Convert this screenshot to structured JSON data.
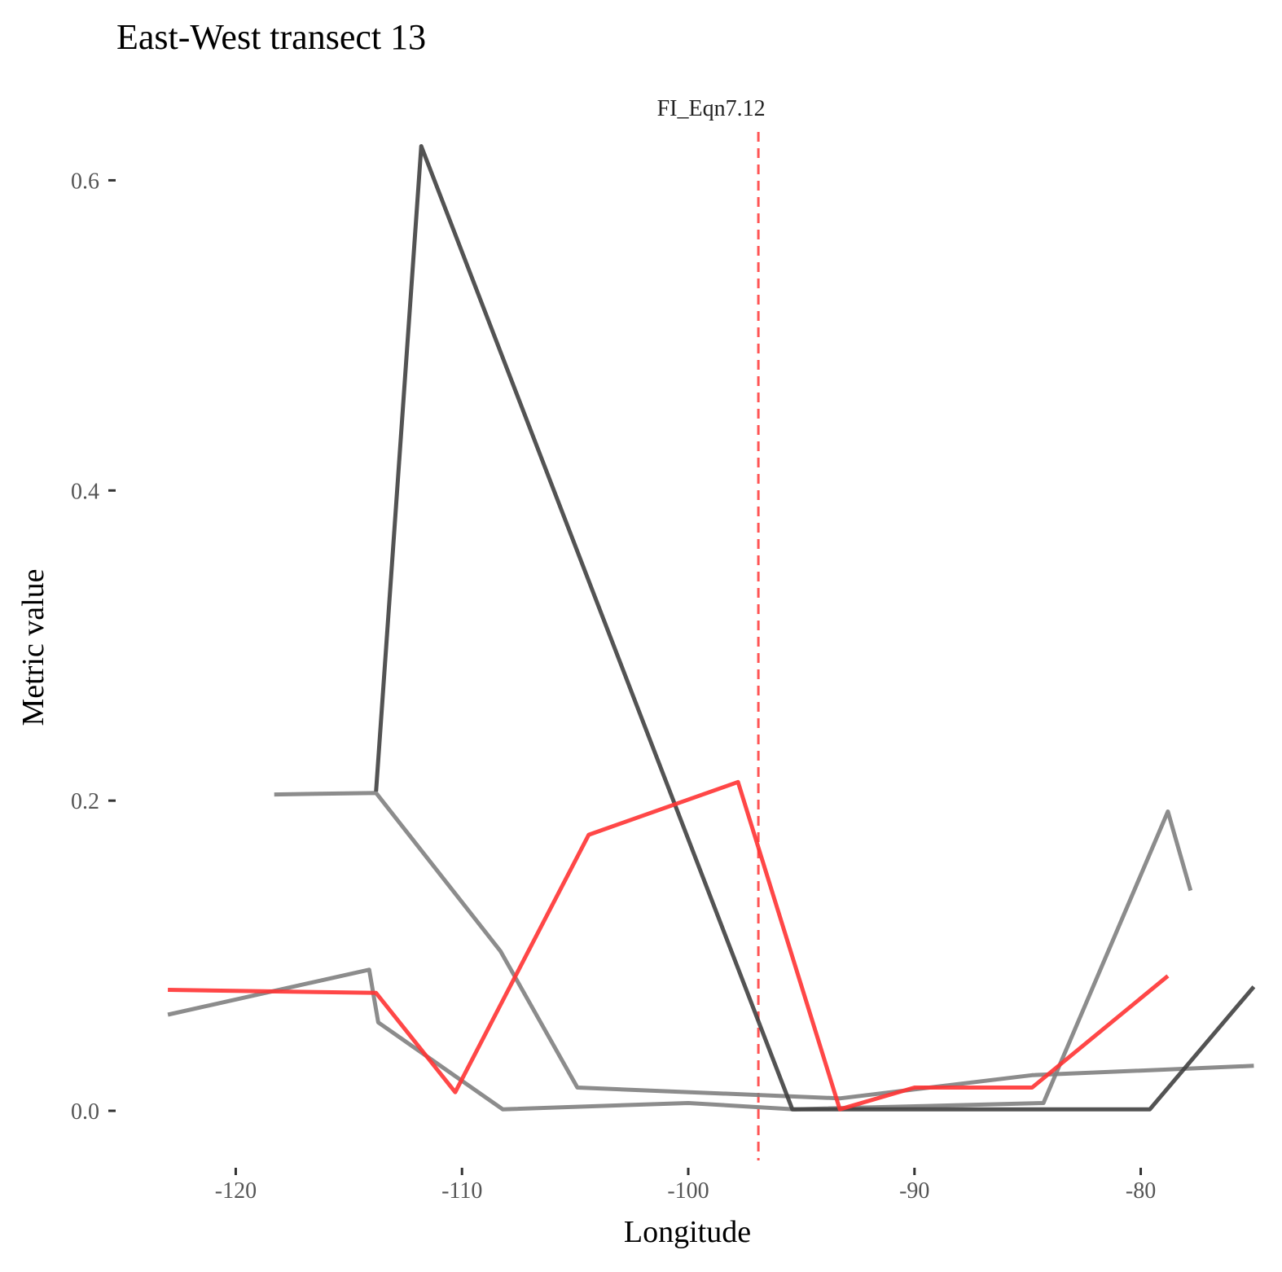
{
  "chart_data": {
    "type": "line",
    "title": "East-West transect 13",
    "xlabel": "Longitude",
    "ylabel": "Metric value",
    "xlim": [
      -125.2,
      -74.8
    ],
    "ylim": [
      -0.032,
      0.648
    ],
    "x_ticks": [
      -120,
      -110,
      -100,
      -90,
      -80
    ],
    "x_tick_labels": [
      "-120",
      "-110",
      "-100",
      "-90",
      "-80"
    ],
    "y_ticks": [
      0.0,
      0.2,
      0.4,
      0.6
    ],
    "y_tick_labels": [
      "0.0",
      "0.2",
      "0.4",
      "0.6"
    ],
    "grid": false,
    "legend": "none",
    "reference_line": {
      "x": -96.9,
      "label": "FI_Eqn7.12",
      "color": "#ff5555",
      "style": "dashed"
    },
    "series": [
      {
        "color": "#808080",
        "points": [
          [
            -118.3,
            0.204
          ],
          [
            -113.8,
            0.205
          ],
          [
            -108.3,
            0.103
          ],
          [
            -104.9,
            0.015
          ],
          [
            -93.3,
            0.008
          ],
          [
            -84.8,
            0.023
          ],
          [
            -75.0,
            0.029
          ]
        ]
      },
      {
        "color": "#808080",
        "points": [
          [
            -123.0,
            0.062
          ],
          [
            -114.1,
            0.091
          ],
          [
            -113.7,
            0.057
          ],
          [
            -108.2,
            0.001
          ],
          [
            -100.0,
            0.005
          ],
          [
            -95.3,
            0.001
          ],
          [
            -84.3,
            0.005
          ],
          [
            -78.8,
            0.193
          ],
          [
            -77.8,
            0.142
          ]
        ]
      },
      {
        "color": "#404040",
        "points": [
          [
            -113.8,
            0.206
          ],
          [
            -111.8,
            0.622
          ],
          [
            -95.4,
            0.001
          ],
          [
            -79.6,
            0.001
          ],
          [
            -75.0,
            0.08
          ]
        ]
      },
      {
        "color": "#ff3333",
        "points": [
          [
            -123.0,
            0.078
          ],
          [
            -113.8,
            0.076
          ],
          [
            -110.3,
            0.012
          ],
          [
            -104.4,
            0.178
          ],
          [
            -97.8,
            0.212
          ],
          [
            -93.3,
            0.001
          ],
          [
            -90.0,
            0.015
          ],
          [
            -84.8,
            0.015
          ],
          [
            -78.8,
            0.087
          ]
        ]
      }
    ]
  }
}
